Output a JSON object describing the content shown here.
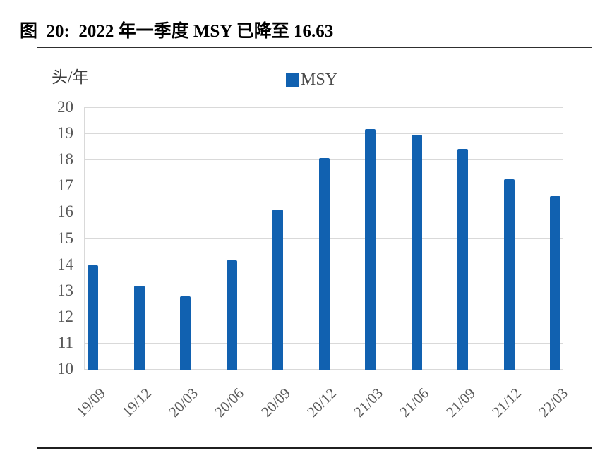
{
  "title": {
    "text": "图  20:  2022 年一季度 MSY 已降至 16.63"
  },
  "chart_data": {
    "type": "bar",
    "title": "2022 年一季度 MSY 已降至 16.63",
    "figure_number": "图 20",
    "ylabel": "头/年",
    "xlabel": "",
    "categories": [
      "19/09",
      "19/12",
      "20/03",
      "20/06",
      "20/09",
      "20/12",
      "21/03",
      "21/06",
      "21/09",
      "21/12",
      "22/03"
    ],
    "series": [
      {
        "name": "MSY",
        "values": [
          13.98,
          13.22,
          12.8,
          14.17,
          16.12,
          18.09,
          19.19,
          18.97,
          18.44,
          17.27,
          16.63
        ]
      }
    ],
    "ylim": [
      10,
      20
    ],
    "yticks": [
      20,
      19,
      18,
      17,
      16,
      15,
      14,
      13,
      12,
      11,
      10
    ],
    "grid": true,
    "legend_position": "top-center",
    "bar_color": "#1161B0",
    "gridline_color": "#D9D9D9",
    "tick_text_color": "#595959"
  }
}
